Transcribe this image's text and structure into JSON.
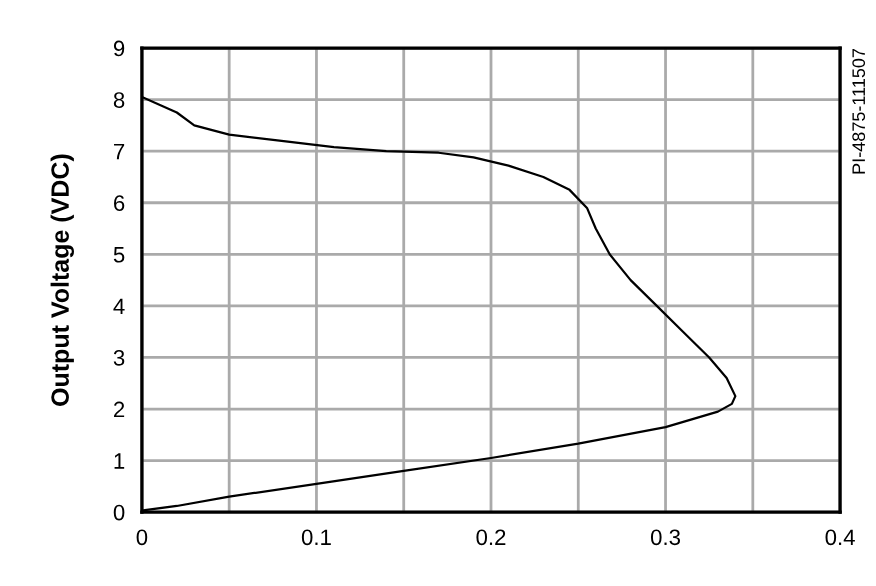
{
  "chart_data": {
    "type": "line",
    "ylabel": "Output Voltage (VDC)",
    "annotations": [
      "PI-4875-111507"
    ],
    "series": [
      {
        "color": "#000000",
        "x": [
          0,
          0.02,
          0.03,
          0.05,
          0.08,
          0.11,
          0.14,
          0.17,
          0.19,
          0.21,
          0.23,
          0.245,
          0.255,
          0.26,
          0.268,
          0.28,
          0.295,
          0.31,
          0.325,
          0.335,
          0.34,
          0.338,
          0.33,
          0.315,
          0.3,
          0.25,
          0.2,
          0.15,
          0.1,
          0.05,
          0.02,
          0
        ],
        "values": [
          8.05,
          7.75,
          7.5,
          7.32,
          7.2,
          7.08,
          7.0,
          6.97,
          6.88,
          6.72,
          6.5,
          6.25,
          5.9,
          5.5,
          5.0,
          4.5,
          4.0,
          3.5,
          3.0,
          2.6,
          2.25,
          2.1,
          1.95,
          1.8,
          1.65,
          1.33,
          1.05,
          0.8,
          0.55,
          0.3,
          0.12,
          0.03
        ]
      }
    ],
    "xlim": [
      0,
      0.4
    ],
    "ylim": [
      0,
      9
    ],
    "xticks": [
      0,
      {
        "value": 0.05,
        "label": null
      },
      0.1,
      {
        "value": 0.15,
        "label": null
      },
      0.2,
      {
        "value": 0.25,
        "label": null
      },
      0.3,
      {
        "value": 0.35,
        "label": null
      },
      0.4
    ],
    "yticks": [
      0,
      1,
      2,
      3,
      4,
      5,
      6,
      7,
      8,
      9
    ],
    "grid": true,
    "marker": "none",
    "line_style": "solid"
  }
}
